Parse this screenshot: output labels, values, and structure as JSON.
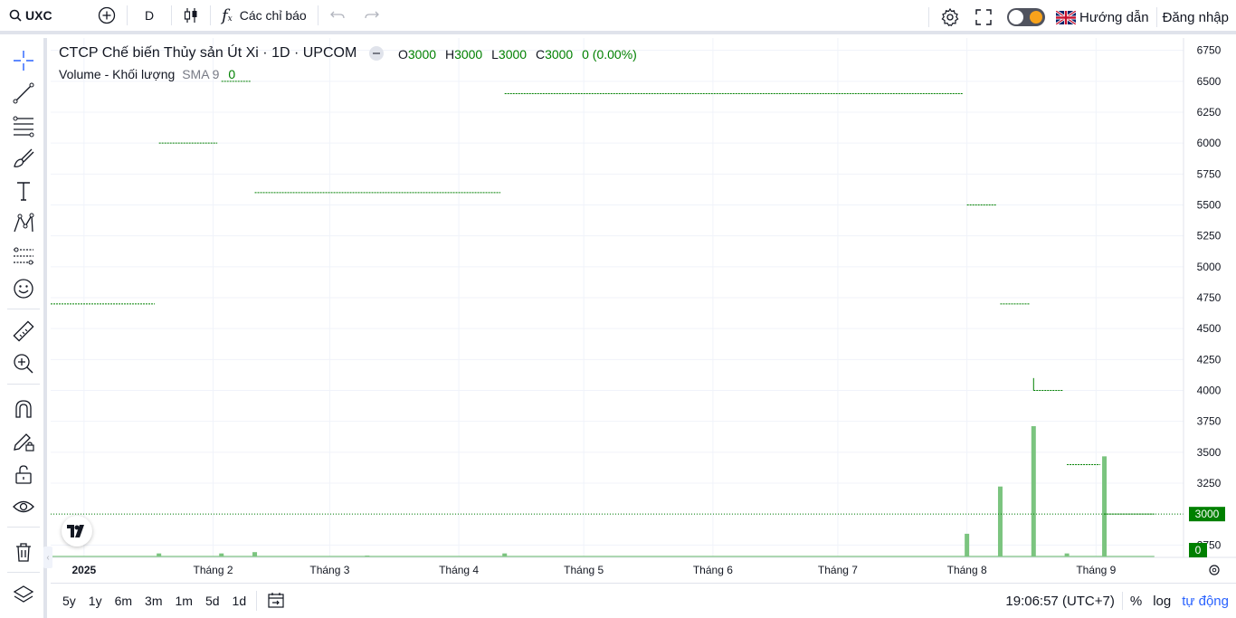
{
  "topbar": {
    "symbol": "UXC",
    "interval": "D",
    "indicators_label": "Các chỉ báo",
    "guide_label": "Hướng dẫn",
    "login_label": "Đăng nhập"
  },
  "legend": {
    "title": "CTCP Chế biến Thủy sản Út Xi · 1D · UPCOM",
    "open_key": "O",
    "open": "3000",
    "high_key": "H",
    "high": "3000",
    "low_key": "L",
    "low": "3000",
    "close_key": "C",
    "close": "3000",
    "change": "0 (0.00%)",
    "volume_label": "Volume - Khối lượng",
    "sma_label": "SMA 9",
    "volume_value": "0"
  },
  "colors": {
    "up": "#008000",
    "volume": "#7bc47f",
    "grid": "#f0f3fa",
    "accent": "#2962ff"
  },
  "chart_data": {
    "type": "line",
    "y_ticks": [
      6750,
      6500,
      6250,
      6000,
      5750,
      5500,
      5250,
      5000,
      4750,
      4500,
      4250,
      4000,
      3750,
      3500,
      3250,
      3000,
      2750
    ],
    "ylim": [
      2650,
      6850
    ],
    "x_tick_labels": [
      "2025",
      "Tháng 2",
      "Tháng 3",
      "Tháng 4",
      "Tháng 5",
      "Tháng 6",
      "Tháng 7",
      "Tháng 8",
      "Tháng 9"
    ],
    "x_tick_dates": [
      "2025-01-01",
      "2025-02-01",
      "2025-03-01",
      "2025-04-01",
      "2025-05-01",
      "2025-06-01",
      "2025-07-01",
      "2025-08-01",
      "2025-09-01"
    ],
    "xlim": [
      "2024-12-24",
      "2025-09-22"
    ],
    "price_segments": [
      {
        "start": "2024-12-24",
        "end": "2025-01-18",
        "price": 4700
      },
      {
        "start": "2025-01-19",
        "end": "2025-02-02",
        "price": 6000
      },
      {
        "start": "2025-02-03",
        "end": "2025-02-10",
        "price": 6500
      },
      {
        "start": "2025-02-11",
        "end": "2025-04-11",
        "price": 5600
      },
      {
        "start": "2025-04-12",
        "end": "2025-07-31",
        "price": 6400
      },
      {
        "start": "2025-08-01",
        "end": "2025-08-08",
        "price": 5500
      },
      {
        "start": "2025-08-09",
        "end": "2025-08-16",
        "price": 4700
      },
      {
        "start": "2025-08-17",
        "end": "2025-08-24",
        "price": 4000
      },
      {
        "start": "2025-08-25",
        "end": "2025-09-02",
        "price": 3400
      },
      {
        "start": "2025-09-03",
        "end": "2025-09-15",
        "price": 3000
      }
    ],
    "last_price": 3000,
    "volume_bars": [
      {
        "date": "2025-01-19",
        "rel": 0.03
      },
      {
        "date": "2025-02-03",
        "rel": 0.03
      },
      {
        "date": "2025-02-11",
        "rel": 0.04
      },
      {
        "date": "2025-03-10",
        "rel": 0.01
      },
      {
        "date": "2025-04-12",
        "rel": 0.03
      },
      {
        "date": "2025-08-01",
        "rel": 0.18
      },
      {
        "date": "2025-08-09",
        "rel": 0.54
      },
      {
        "date": "2025-08-17",
        "rel": 1.0
      },
      {
        "date": "2025-08-25",
        "rel": 0.03
      },
      {
        "date": "2025-09-03",
        "rel": 0.77
      }
    ],
    "volume_last": 0
  },
  "bottombar": {
    "ranges": [
      "5y",
      "1y",
      "6m",
      "3m",
      "1m",
      "5d",
      "1d"
    ],
    "time": "19:06:57 (UTC+7)",
    "percent": "%",
    "log": "log",
    "auto": "tự động"
  }
}
